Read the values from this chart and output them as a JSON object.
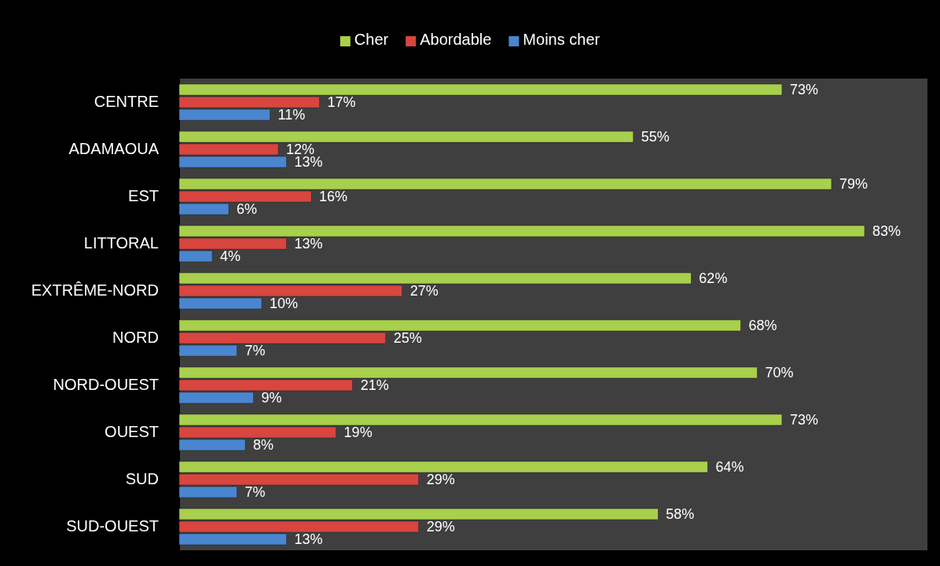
{
  "chart_data": {
    "type": "bar",
    "orientation": "horizontal",
    "categories": [
      "CENTRE",
      "ADAMAOUA",
      "EST",
      "LITTORAL",
      "EXTRÊME-NORD",
      "NORD",
      "NORD-OUEST",
      "OUEST",
      "SUD",
      "SUD-OUEST"
    ],
    "series": [
      {
        "name": "Cher",
        "color": "#a9d04c",
        "values": [
          73,
          55,
          79,
          83,
          62,
          68,
          70,
          73,
          64,
          58
        ],
        "value_labels": [
          "73%",
          "55%",
          "79%",
          "83%",
          "62%",
          "68%",
          "70%",
          "73%",
          "64%",
          "58%"
        ]
      },
      {
        "name": "Abordable",
        "color": "#d9453f",
        "values": [
          17,
          12,
          16,
          13,
          27,
          25,
          21,
          19,
          29,
          29
        ],
        "value_labels": [
          "17%",
          "12%",
          "16%",
          "13%",
          "27%",
          "25%",
          "21%",
          "19%",
          "29%",
          "29%"
        ]
      },
      {
        "name": "Moins cher",
        "color": "#4a86d0",
        "values": [
          11,
          13,
          6,
          4,
          10,
          7,
          9,
          8,
          7,
          13
        ],
        "value_labels": [
          "11%",
          "13%",
          "6%",
          "4%",
          "10%",
          "7%",
          "9%",
          "8%",
          "7%",
          "13%"
        ]
      }
    ],
    "tick_labels": "y",
    "legend": "top"
  }
}
